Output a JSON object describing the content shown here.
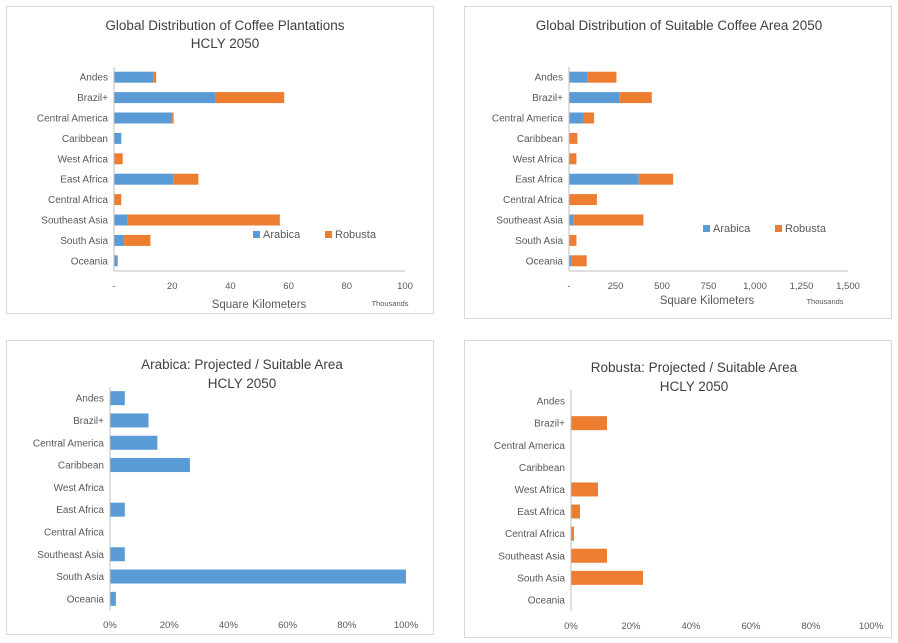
{
  "colors": {
    "arabica": "#5B9BD5",
    "robusta": "#ED7D31",
    "axis": "#BFBFBF"
  },
  "chart_data": [
    {
      "type": "bar",
      "orientation": "horizontal",
      "stacked": true,
      "title": "Global Distribution of Coffee Plantations",
      "subtitle": "HCLY 2050",
      "xlabel": "Square Kilometers",
      "x_units": "Thousands",
      "xlim": [
        0,
        100
      ],
      "xticks": [
        0,
        20,
        40,
        60,
        80,
        100
      ],
      "xtick_labels": [
        "-",
        "20",
        "40",
        "60",
        "80",
        "100"
      ],
      "categories": [
        "Andes",
        "Brazil+",
        "Central America",
        "Caribbean",
        "West Africa",
        "East Africa",
        "Central Africa",
        "Southeast Asia",
        "South Asia",
        "Oceania"
      ],
      "series": [
        {
          "name": "Arabica",
          "values": [
            13.5,
            35,
            20,
            2.5,
            0,
            20.5,
            0,
            4.5,
            3.5,
            1
          ]
        },
        {
          "name": "Robusta",
          "values": [
            1,
            23.5,
            0.5,
            0,
            3,
            8.5,
            2.5,
            52.5,
            9,
            0.3
          ]
        }
      ],
      "legend": "inside-bottom-right"
    },
    {
      "type": "bar",
      "orientation": "horizontal",
      "stacked": true,
      "title": "Global Distribution of Suitable Coffee Area 2050",
      "subtitle": "",
      "xlabel": "Square Kilometers",
      "x_units": "Thousands",
      "xlim": [
        0,
        1500
      ],
      "xticks": [
        0,
        250,
        500,
        750,
        1000,
        1250,
        1500
      ],
      "xtick_labels": [
        "-",
        "250",
        "500",
        "750",
        "1,000",
        "1,250",
        "1,500"
      ],
      "categories": [
        "Andes",
        "Brazil+",
        "Central America",
        "Caribbean",
        "West Africa",
        "East Africa",
        "Central Africa",
        "Southeast Asia",
        "South Asia",
        "Oceania"
      ],
      "series": [
        {
          "name": "Arabica",
          "values": [
            100,
            270,
            75,
            5,
            0,
            375,
            0,
            25,
            5,
            15
          ]
        },
        {
          "name": "Robusta",
          "values": [
            155,
            175,
            60,
            40,
            40,
            185,
            150,
            375,
            35,
            80
          ]
        }
      ],
      "legend": "inside-bottom-right"
    },
    {
      "type": "bar",
      "orientation": "horizontal",
      "title": "Arabica: Projected  / Suitable Area",
      "subtitle": "HCLY 2050",
      "xlabel": "",
      "xlim": [
        0,
        1
      ],
      "xticks": [
        0,
        0.2,
        0.4,
        0.6,
        0.8,
        1
      ],
      "xtick_labels": [
        "0%",
        "20%",
        "40%",
        "60%",
        "80%",
        "100%"
      ],
      "categories": [
        "Andes",
        "Brazil+",
        "Central America",
        "Caribbean",
        "West Africa",
        "East Africa",
        "Central Africa",
        "Southeast Asia",
        "South Asia",
        "Oceania"
      ],
      "series": [
        {
          "name": "",
          "color": "arabica",
          "values": [
            0.05,
            0.13,
            0.16,
            0.27,
            0,
            0.05,
            0,
            0.05,
            1.0,
            0.02
          ]
        }
      ]
    },
    {
      "type": "bar",
      "orientation": "horizontal",
      "title": "Robusta: Projected / Suitable Area",
      "subtitle": "HCLY 2050",
      "xlabel": "",
      "xlim": [
        0,
        1
      ],
      "xticks": [
        0,
        0.2,
        0.4,
        0.6,
        0.8,
        1
      ],
      "xtick_labels": [
        "0%",
        "20%",
        "40%",
        "60%",
        "80%",
        "100%"
      ],
      "categories": [
        "Andes",
        "Brazil+",
        "Central America",
        "Caribbean",
        "West Africa",
        "East Africa",
        "Central Africa",
        "Southeast Asia",
        "South Asia",
        "Oceania"
      ],
      "series": [
        {
          "name": "",
          "color": "robusta",
          "values": [
            0,
            0.12,
            0,
            0,
            0.09,
            0.03,
            0.01,
            0.12,
            0.24,
            0
          ]
        }
      ]
    }
  ]
}
